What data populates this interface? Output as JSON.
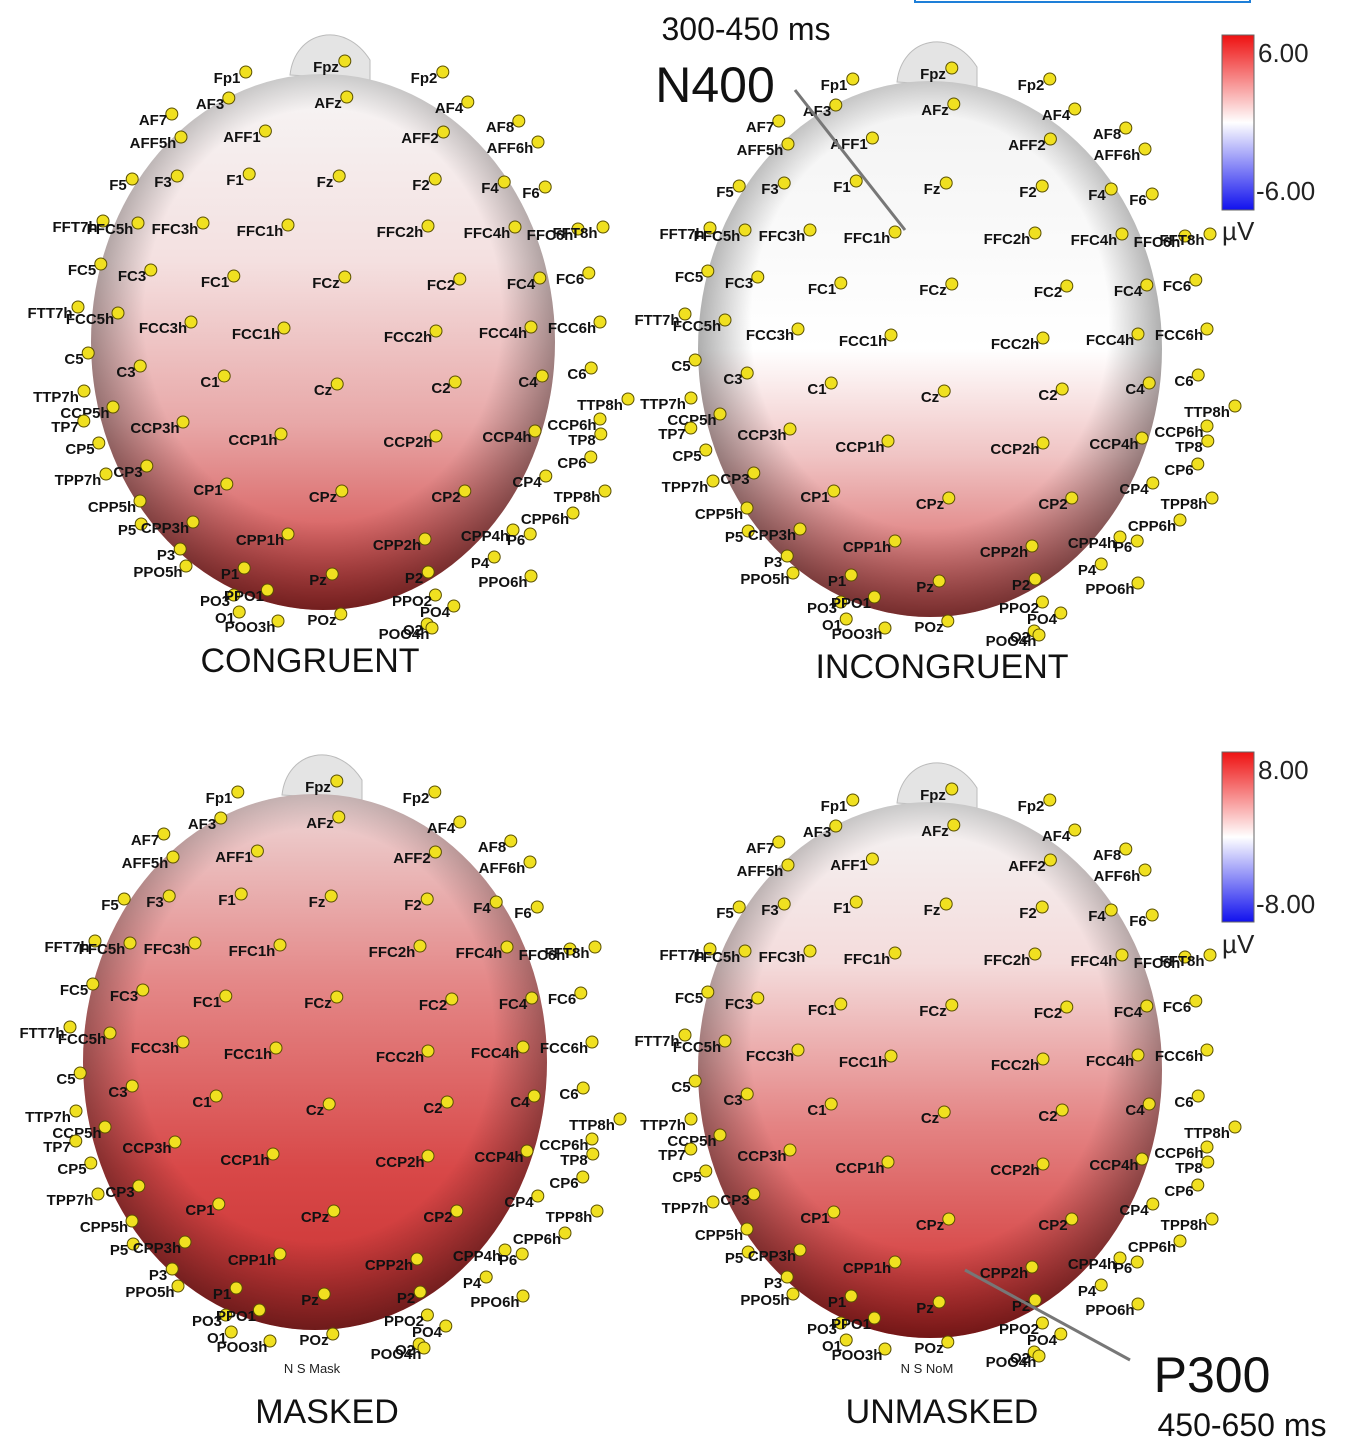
{
  "annotations": {
    "top": {
      "window": "300-450 ms",
      "component": "N400"
    },
    "bottom": {
      "component": "P300",
      "window": "450-650 ms"
    }
  },
  "colorbars": [
    {
      "max": "6.00",
      "min": "-6.00",
      "unit": "µV"
    },
    {
      "max": "8.00",
      "min": "-8.00",
      "unit": "µV"
    }
  ],
  "panels": [
    {
      "label": "CONGRUENT"
    },
    {
      "label": "INCONGRUENT"
    },
    {
      "label": "MASKED",
      "footnote": "N S Mask"
    },
    {
      "label": "UNMASKED",
      "footnote": "N S NoM"
    }
  ],
  "electrodes": [
    "Fpz",
    "Fp1",
    "Fp2",
    "AF7",
    "AF3",
    "AFz",
    "AF4",
    "AF8",
    "AFF5h",
    "AFF1",
    "AFF2",
    "AFF6h",
    "F5",
    "F3",
    "F1",
    "Fz",
    "F2",
    "F4",
    "F6",
    "FFT7h",
    "FFC5h",
    "FFC3h",
    "FFC1h",
    "FFC2h",
    "FFC4h",
    "FFC6h",
    "FFT8h",
    "FC5",
    "FC3",
    "FC1",
    "FCz",
    "FC2",
    "FC4",
    "FC6",
    "FTT7h",
    "FCC5h",
    "FCC3h",
    "FCC1h",
    "FCC2h",
    "FCC4h",
    "FCC6h",
    "C5",
    "C3",
    "C1",
    "Cz",
    "C2",
    "C4",
    "C6",
    "TTP7h",
    "CCP5h",
    "TP7",
    "CCP3h",
    "CCP1h",
    "CCP2h",
    "CCP4h",
    "CCP6h",
    "TTP8h",
    "TP8",
    "CP5",
    "CP6",
    "TPP7h",
    "CP3",
    "CP1",
    "CPz",
    "CP2",
    "CP4",
    "TPP8h",
    "CPP5h",
    "CPP6h",
    "P5",
    "CPP3h",
    "CPP1h",
    "CPP2h",
    "CPP4h",
    "P6",
    "P3",
    "PPO5h",
    "P1",
    "Pz",
    "P2",
    "P4",
    "PPO6h",
    "PO3",
    "PPO1",
    "POz",
    "PPO2",
    "PO4",
    "O1",
    "POO3h",
    "O2",
    "POO4h"
  ]
}
